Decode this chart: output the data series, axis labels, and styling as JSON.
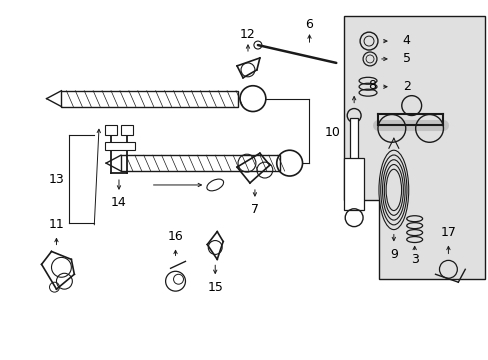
{
  "bg_color": "#ffffff",
  "line_color": "#1a1a1a",
  "gray_fill": "#e0e0e0",
  "fig_width": 4.89,
  "fig_height": 3.6,
  "dpi": 100,
  "xlim": [
    0,
    489
  ],
  "ylim": [
    0,
    360
  ]
}
